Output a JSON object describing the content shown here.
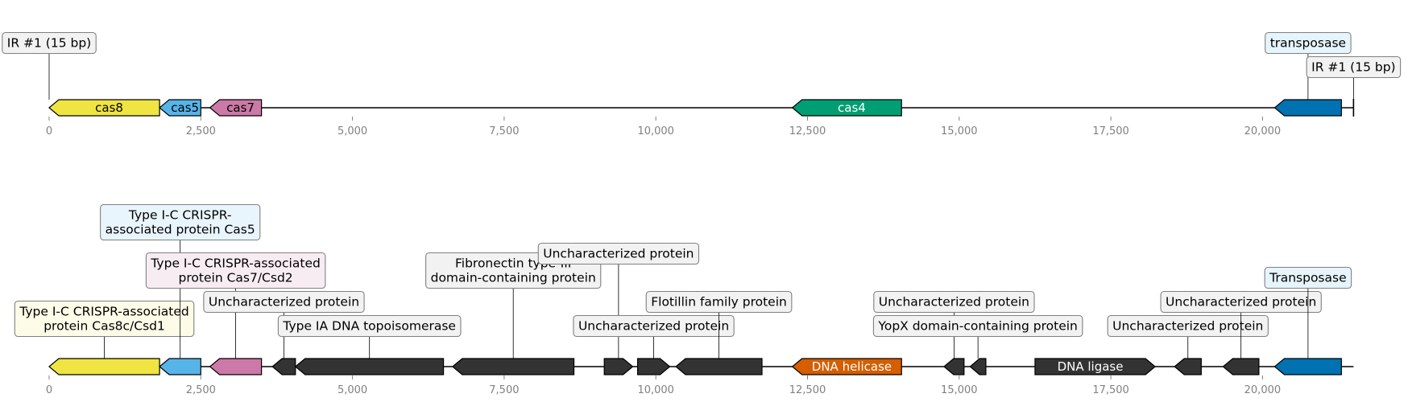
{
  "chart_data": {
    "type": "gene_map",
    "axis": {
      "range": [
        0,
        21500
      ],
      "ticks": [
        0,
        2500,
        5000,
        7500,
        10000,
        12500,
        15000,
        17500,
        20000
      ],
      "tick_labels": [
        "0",
        "2,500",
        "5,000",
        "7,500",
        "10,000",
        "12,500",
        "15,000",
        "17,500",
        "20,000"
      ]
    },
    "tracks": [
      {
        "genes": [
          {
            "start": 0,
            "end": 1820,
            "strand": -1,
            "color": "#f0e442",
            "label": "cas8",
            "text_color": "#000000"
          },
          {
            "start": 1820,
            "end": 2500,
            "strand": -1,
            "color": "#56b4e9",
            "label": "cas5",
            "text_color": "#000000"
          },
          {
            "start": 2650,
            "end": 3500,
            "strand": -1,
            "color": "#cc79a7",
            "label": "cas7",
            "text_color": "#000000"
          },
          {
            "start": 12250,
            "end": 14050,
            "strand": -1,
            "color": "#009e73",
            "label": "cas4",
            "text_color": "#ffffff"
          },
          {
            "start": 20200,
            "end": 21300,
            "strand": -1,
            "color": "#0072b2",
            "label": "",
            "text_color": "#ffffff"
          }
        ],
        "annotations": [
          {
            "text": [
              "IR #1 (15 bp)"
            ],
            "x": 0,
            "level": 2,
            "bg": "#f2f2f2"
          },
          {
            "text": [
              "transposase"
            ],
            "x": 20750,
            "level": 2,
            "bg": "#e6f4fb"
          },
          {
            "text": [
              "IR #1 (15 bp)"
            ],
            "x": 21500,
            "level": 1,
            "bg": "#f2f2f2"
          }
        ]
      },
      {
        "genes": [
          {
            "start": 0,
            "end": 1820,
            "strand": -1,
            "color": "#f0e442",
            "label": "",
            "text_color": "#000000"
          },
          {
            "start": 1820,
            "end": 2500,
            "strand": -1,
            "color": "#56b4e9",
            "label": "",
            "text_color": "#000000"
          },
          {
            "start": 2650,
            "end": 3500,
            "strand": -1,
            "color": "#cc79a7",
            "label": "",
            "text_color": "#000000"
          },
          {
            "start": 3680,
            "end": 4060,
            "strand": -1,
            "color": "#333333",
            "label": "",
            "text_color": "#ffffff"
          },
          {
            "start": 4060,
            "end": 6500,
            "strand": -1,
            "color": "#333333",
            "label": "",
            "text_color": "#ffffff"
          },
          {
            "start": 6650,
            "end": 8650,
            "strand": -1,
            "color": "#333333",
            "label": "",
            "text_color": "#ffffff"
          },
          {
            "start": 9150,
            "end": 9620,
            "strand": 1,
            "color": "#333333",
            "label": "",
            "text_color": "#ffffff"
          },
          {
            "start": 9700,
            "end": 10230,
            "strand": 1,
            "color": "#333333",
            "label": "",
            "text_color": "#ffffff"
          },
          {
            "start": 10330,
            "end": 11750,
            "strand": -1,
            "color": "#333333",
            "label": "",
            "text_color": "#ffffff"
          },
          {
            "start": 12250,
            "end": 14050,
            "strand": -1,
            "color": "#d55e00",
            "label": "DNA helicase",
            "text_color": "#ffffff"
          },
          {
            "start": 14750,
            "end": 15080,
            "strand": -1,
            "color": "#333333",
            "label": "",
            "text_color": "#ffffff"
          },
          {
            "start": 15180,
            "end": 15440,
            "strand": -1,
            "color": "#333333",
            "label": "",
            "text_color": "#ffffff"
          },
          {
            "start": 16250,
            "end": 18230,
            "strand": 1,
            "color": "#333333",
            "label": "DNA ligase",
            "text_color": "#ffffff"
          },
          {
            "start": 18550,
            "end": 18990,
            "strand": -1,
            "color": "#333333",
            "label": "",
            "text_color": "#ffffff"
          },
          {
            "start": 19350,
            "end": 19940,
            "strand": -1,
            "color": "#333333",
            "label": "",
            "text_color": "#ffffff"
          },
          {
            "start": 20200,
            "end": 21300,
            "strand": -1,
            "color": "#0072b2",
            "label": "",
            "text_color": "#ffffff"
          }
        ],
        "annotations": [
          {
            "text": [
              "Type I-C CRISPR-associated",
              "protein Cas8c/Csd1"
            ],
            "x": 910,
            "level": 1,
            "bg": "#fcfce8"
          },
          {
            "text": [
              "Type I-C CRISPR-",
              "associated protein Cas5"
            ],
            "x": 2160,
            "level": 5,
            "bg": "#e9f5fc"
          },
          {
            "text": [
              "Type I-C CRISPR-associated",
              "protein Cas7/Csd2"
            ],
            "x": 3075,
            "level": 3,
            "bg": "#f8ecf3"
          },
          {
            "text": [
              "Uncharacterized protein"
            ],
            "x": 3870,
            "level": 2,
            "bg": "#f2f2f2"
          },
          {
            "text": [
              "Type IA DNA topoisomerase"
            ],
            "x": 5280,
            "level": 1,
            "bg": "#f2f2f2"
          },
          {
            "text": [
              "Fibronectin type-III",
              "domain-containing protein"
            ],
            "x": 7650,
            "level": 3,
            "bg": "#f2f2f2"
          },
          {
            "text": [
              "Uncharacterized protein"
            ],
            "x": 9385,
            "level": 4,
            "bg": "#f2f2f2"
          },
          {
            "text": [
              "Uncharacterized protein"
            ],
            "x": 9965,
            "level": 1,
            "bg": "#f2f2f2"
          },
          {
            "text": [
              "Flotillin family protein"
            ],
            "x": 11040,
            "level": 2,
            "bg": "#f2f2f2"
          },
          {
            "text": [
              "Uncharacterized protein"
            ],
            "x": 14915,
            "level": 2,
            "bg": "#f2f2f2"
          },
          {
            "text": [
              "YopX domain-containing protein"
            ],
            "x": 15310,
            "level": 1,
            "bg": "#f2f2f2"
          },
          {
            "text": [
              "Uncharacterized protein"
            ],
            "x": 18770,
            "level": 1,
            "bg": "#f2f2f2"
          },
          {
            "text": [
              "Uncharacterized protein"
            ],
            "x": 19645,
            "level": 2,
            "bg": "#f2f2f2"
          },
          {
            "text": [
              "Transposase"
            ],
            "x": 20750,
            "level": 3,
            "bg": "#e6f4fb"
          }
        ]
      }
    ]
  }
}
